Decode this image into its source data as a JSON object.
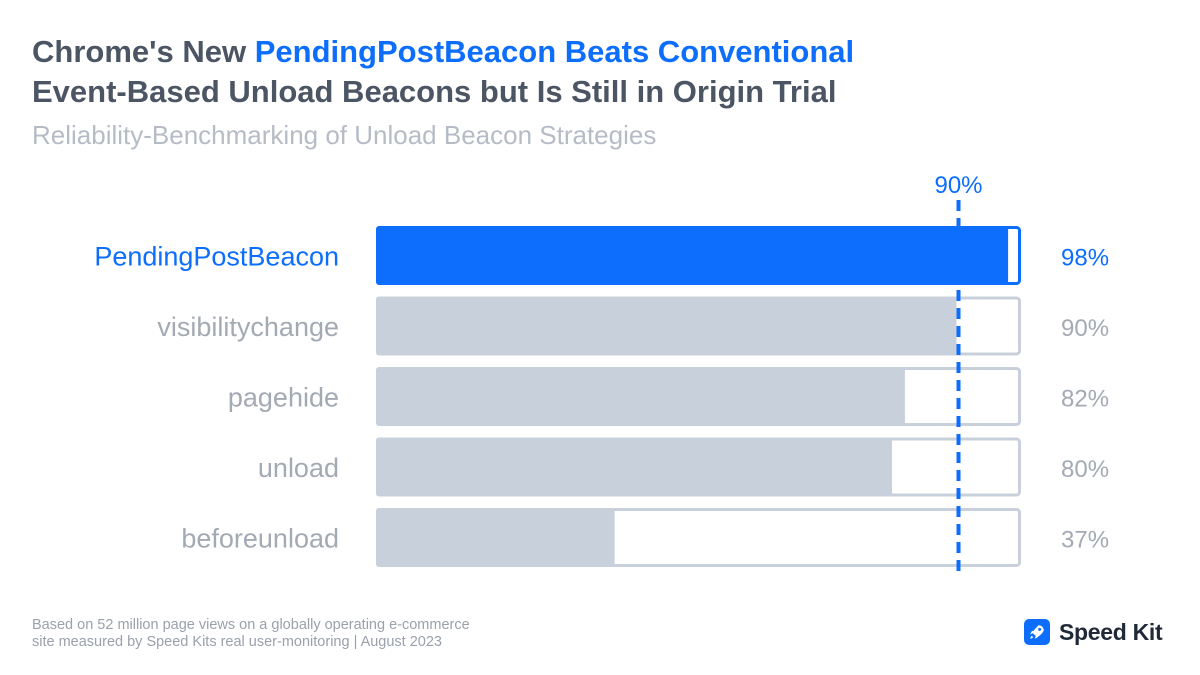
{
  "title": {
    "part1": "Chrome's New ",
    "highlight": "PendingPostBeacon Beats Conventional",
    "line2": "Event-Based Unload Beacons but Is Still in Origin Trial"
  },
  "subtitle": "Reliability-Benchmarking of Unload Beacon Strategies",
  "footnote": {
    "line1": "Based on 52 million page views on a globally operating e-commerce",
    "line2": "site measured by Speed Kits real user-monitoring | August 2023"
  },
  "logo": {
    "text": "Speed Kit",
    "icon": "rocket-icon"
  },
  "colors": {
    "highlight": "#0d6efd",
    "bar_gray": "#c8d0db",
    "label_gray": "#a3aab4",
    "track_border": "#c8d0db"
  },
  "chart_data": {
    "type": "bar",
    "orientation": "horizontal",
    "categories": [
      "PendingPostBeacon",
      "visibilitychange",
      "pagehide",
      "unload",
      "beforeunload"
    ],
    "values": [
      98,
      90,
      82,
      80,
      37
    ],
    "value_labels": [
      "98%",
      "90%",
      "82%",
      "80%",
      "37%"
    ],
    "highlighted_index": 0,
    "xlim": [
      0,
      100
    ],
    "reference_line": {
      "value": 90,
      "label": "90%"
    },
    "title": "Chrome's New PendingPostBeacon Beats Conventional Event-Based Unload Beacons but Is Still in Origin Trial",
    "subtitle": "Reliability-Benchmarking of Unload Beacon Strategies",
    "xlabel": "",
    "ylabel": "",
    "grid": false
  }
}
